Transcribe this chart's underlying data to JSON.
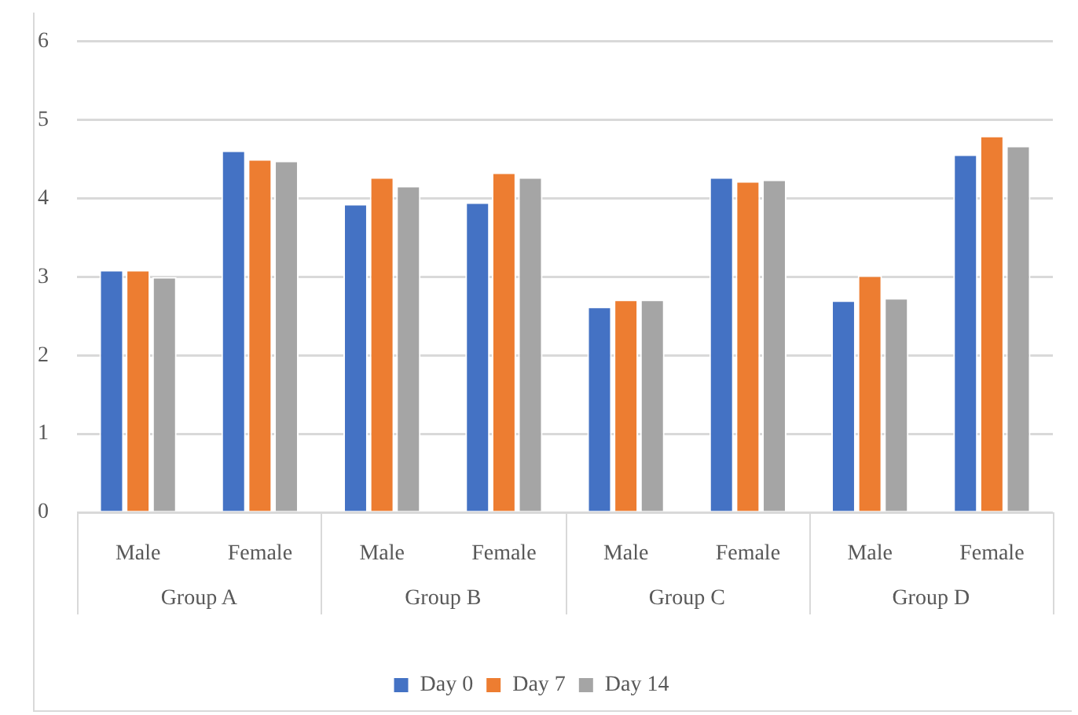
{
  "chart_data": {
    "type": "bar",
    "categories": [
      "Male",
      "Female",
      "Male",
      "Female",
      "Male",
      "Female",
      "Male",
      "Female"
    ],
    "series": [
      {
        "name": "Day 0",
        "color": "#4472c4",
        "values": [
          3.09,
          4.61,
          3.93,
          3.95,
          2.62,
          4.27,
          2.7,
          4.56
        ]
      },
      {
        "name": "Day 7",
        "color": "#ed7d31",
        "values": [
          3.09,
          4.5,
          4.27,
          4.33,
          2.71,
          4.22,
          3.02,
          4.8
        ]
      },
      {
        "name": "Day 14",
        "color": "#a5a5a5",
        "values": [
          3.0,
          4.48,
          4.16,
          4.27,
          2.71,
          4.24,
          2.73,
          4.67
        ]
      }
    ],
    "annotations": [
      "Group A",
      "Group B",
      "Group C",
      "Group D"
    ],
    "ylim": [
      0,
      6
    ],
    "yticks": [
      0,
      1,
      2,
      3,
      4,
      5,
      6
    ],
    "grid": "y",
    "legend": "bottom"
  }
}
